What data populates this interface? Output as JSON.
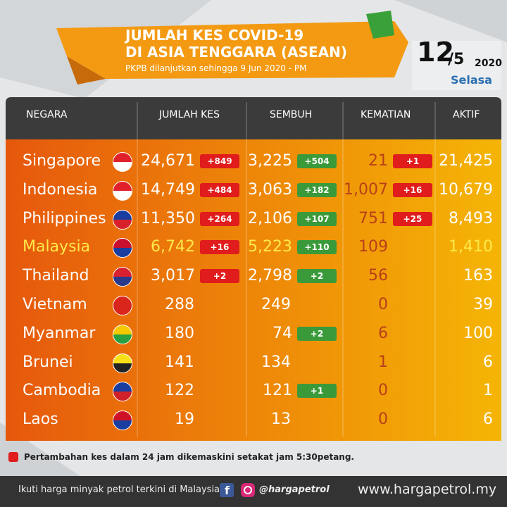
{
  "header": {
    "title_lines": [
      "JUMLAH KES COVID-19",
      "DI ASIA TENGGARA (ASEAN)"
    ],
    "subtitle": "PKPB dilanjutkan sehingga 9 Jun 2020 - PM"
  },
  "date": {
    "day": "12",
    "month": "/5",
    "year": "2020",
    "weekday": "Selasa"
  },
  "table": {
    "columns": [
      "NEGARA",
      "JUMLAH KES",
      "SEMBUH",
      "KEMATIAN",
      "AKTIF"
    ],
    "rows": [
      {
        "country": "Singapore",
        "cases": "24,671",
        "cases_new": "+849",
        "recovered": "3,225",
        "recovered_new": "+504",
        "deaths": "21",
        "deaths_new": "+1",
        "active": "21,425"
      },
      {
        "country": "Indonesia",
        "cases": "14,749",
        "cases_new": "+484",
        "recovered": "3,063",
        "recovered_new": "+182",
        "deaths": "1,007",
        "deaths_new": "+16",
        "active": "10,679"
      },
      {
        "country": "Philippines",
        "cases": "11,350",
        "cases_new": "+264",
        "recovered": "2,106",
        "recovered_new": "+107",
        "deaths": "751",
        "deaths_new": "+25",
        "active": "8,493"
      },
      {
        "country": "Malaysia",
        "cases": "6,742",
        "cases_new": "+16",
        "recovered": "5,223",
        "recovered_new": "+110",
        "deaths": "109",
        "active": "1,410",
        "highlight": true
      },
      {
        "country": "Thailand",
        "cases": "3,017",
        "cases_new": "+2",
        "recovered": "2,798",
        "recovered_new": "+2",
        "deaths": "56",
        "active": "163"
      },
      {
        "country": "Vietnam",
        "cases": "288",
        "recovered": "249",
        "deaths": "0",
        "active": "39"
      },
      {
        "country": "Myanmar",
        "cases": "180",
        "recovered": "74",
        "recovered_new": "+2",
        "deaths": "6",
        "active": "100"
      },
      {
        "country": "Brunei",
        "cases": "141",
        "recovered": "134",
        "deaths": "1",
        "active": "6"
      },
      {
        "country": "Cambodia",
        "cases": "122",
        "recovered": "121",
        "recovered_new": "+1",
        "deaths": "0",
        "active": "1"
      },
      {
        "country": "Laos",
        "cases": "19",
        "recovered": "13",
        "deaths": "0",
        "active": "6"
      }
    ]
  },
  "footnote": "Pertambahan kes dalam 24 jam dikemaskini setakat jam 5:30petang.",
  "footer": {
    "tagline": "Ikuti harga minyak petrol terkini di Malaysia",
    "handle": "@hargapetrol",
    "website": "www.hargapetrol.my"
  }
}
